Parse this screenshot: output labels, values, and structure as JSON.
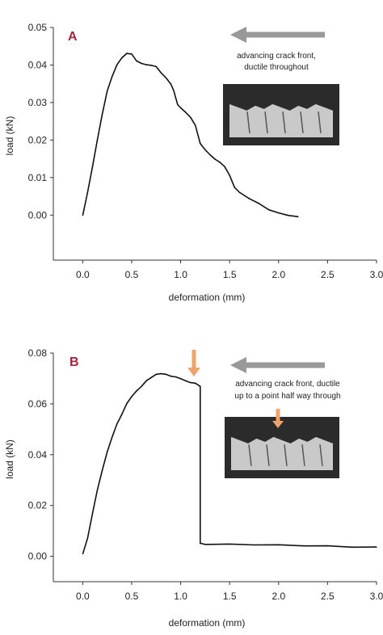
{
  "chart_data": [
    {
      "type": "line",
      "panel_label": "A",
      "xlabel": "deformation  (mm)",
      "ylabel": "load  (kN)",
      "xlim": [
        -0.3,
        3.0
      ],
      "ylim": [
        -0.012,
        0.05
      ],
      "xticks": [
        "0.0",
        "0.5",
        "1.0",
        "1.5",
        "2.0",
        "2.5",
        "3.0"
      ],
      "yticks": [
        "0.00",
        "0.01",
        "0.02",
        "0.03",
        "0.04",
        "0.05"
      ],
      "annotation": [
        "advancing  crack front,",
        "ductile  throughout"
      ],
      "series": [
        {
          "x": [
            0.0,
            0.05,
            0.1,
            0.15,
            0.2,
            0.25,
            0.3,
            0.35,
            0.4,
            0.45,
            0.5,
            0.55,
            0.6,
            0.65,
            0.7,
            0.75,
            0.8,
            0.85,
            0.9,
            0.93,
            0.97,
            1.0,
            1.05,
            1.1,
            1.15,
            1.2,
            1.25,
            1.3,
            1.35,
            1.4,
            1.45,
            1.5,
            1.55,
            1.6,
            1.7,
            1.8,
            1.9,
            2.0,
            2.1,
            2.2
          ],
          "y": [
            0.0,
            0.006,
            0.013,
            0.02,
            0.027,
            0.033,
            0.037,
            0.04,
            0.042,
            0.043,
            0.043,
            0.041,
            0.0405,
            0.04,
            0.04,
            0.0395,
            0.038,
            0.0365,
            0.035,
            0.033,
            0.0295,
            0.0285,
            0.0275,
            0.026,
            0.024,
            0.019,
            0.0175,
            0.016,
            0.015,
            0.014,
            0.013,
            0.0105,
            0.0075,
            0.006,
            0.0045,
            0.003,
            0.0015,
            0.0005,
            0.0,
            -0.0005
          ]
        }
      ]
    },
    {
      "type": "line",
      "panel_label": "B",
      "xlabel": "deformation  (mm)",
      "ylabel": "load  (kN)",
      "xlim": [
        -0.3,
        3.0
      ],
      "ylim": [
        -0.01,
        0.08
      ],
      "xticks": [
        "0.0",
        "0.5",
        "1.0",
        "1.5",
        "2.0",
        "2.5",
        "3.0"
      ],
      "yticks": [
        "0.00",
        "0.02",
        "0.04",
        "0.06",
        "0.08"
      ],
      "annotation": [
        "advancing  crack front, ductile",
        "up to a point half way through"
      ],
      "series": [
        {
          "x": [
            0.0,
            0.05,
            0.1,
            0.15,
            0.2,
            0.25,
            0.3,
            0.35,
            0.4,
            0.45,
            0.5,
            0.55,
            0.6,
            0.65,
            0.7,
            0.75,
            0.8,
            0.85,
            0.9,
            0.95,
            1.0,
            1.05,
            1.1,
            1.15,
            1.2,
            1.2,
            1.25,
            1.5,
            1.75,
            2.0,
            2.25,
            2.5,
            2.75,
            3.0
          ],
          "y": [
            0.001,
            0.007,
            0.017,
            0.026,
            0.034,
            0.041,
            0.047,
            0.052,
            0.056,
            0.06,
            0.063,
            0.065,
            0.067,
            0.069,
            0.0705,
            0.0715,
            0.072,
            0.0715,
            0.071,
            0.0705,
            0.07,
            0.069,
            0.0685,
            0.068,
            0.067,
            0.005,
            0.0048,
            0.0047,
            0.0046,
            0.0044,
            0.0042,
            0.004,
            0.0037,
            0.0035
          ]
        }
      ]
    }
  ]
}
